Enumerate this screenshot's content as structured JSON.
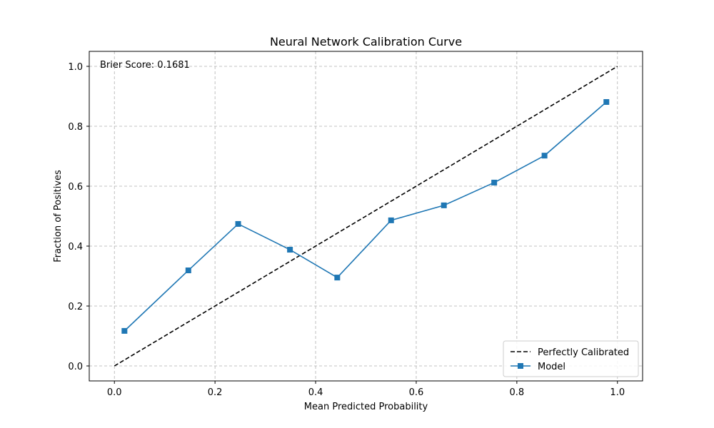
{
  "chart_data": {
    "type": "line",
    "title": "Neural Network Calibration Curve",
    "xlabel": "Mean Predicted Probability",
    "ylabel": "Fraction of Positives",
    "xlim": [
      -0.05,
      1.05
    ],
    "ylim": [
      -0.05,
      1.05
    ],
    "xticks": [
      0.0,
      0.2,
      0.4,
      0.6,
      0.8,
      1.0
    ],
    "yticks": [
      0.0,
      0.2,
      0.4,
      0.6,
      0.8,
      1.0
    ],
    "xtick_labels": [
      "0.0",
      "0.2",
      "0.4",
      "0.6",
      "0.8",
      "1.0"
    ],
    "ytick_labels": [
      "0.0",
      "0.2",
      "0.4",
      "0.6",
      "0.8",
      "1.0"
    ],
    "grid": true,
    "legend_position": "lower-right",
    "annotation": "Brier Score: 0.1681",
    "series": [
      {
        "name": "Perfectly Calibrated",
        "style": "dashed",
        "color": "#000000",
        "marker": "none",
        "x": [
          0.0,
          1.0
        ],
        "y": [
          0.0,
          1.0
        ]
      },
      {
        "name": "Model",
        "style": "solid",
        "color": "#1f77b4",
        "marker": "square",
        "x": [
          0.02,
          0.147,
          0.246,
          0.349,
          0.443,
          0.55,
          0.655,
          0.755,
          0.855,
          0.978
        ],
        "y": [
          0.117,
          0.319,
          0.474,
          0.388,
          0.295,
          0.486,
          0.536,
          0.612,
          0.702,
          0.881
        ]
      }
    ]
  }
}
